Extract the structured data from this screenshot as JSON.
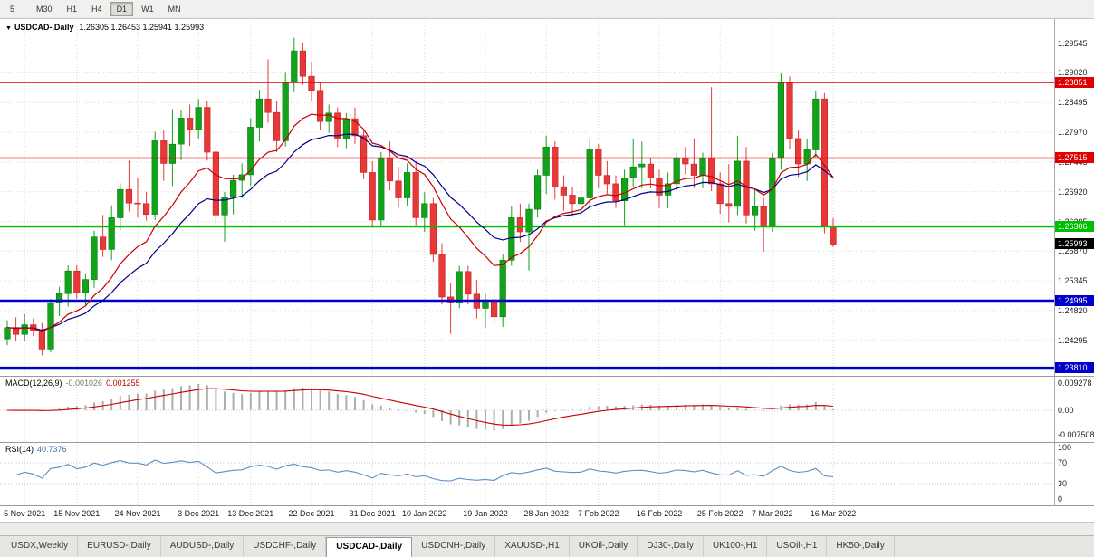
{
  "toolbar": {
    "timeframes": [
      {
        "label": "5",
        "active": false
      },
      {
        "label": "M30",
        "active": false
      },
      {
        "label": "H1",
        "active": false
      },
      {
        "label": "H4",
        "active": false
      },
      {
        "label": "D1",
        "active": true
      },
      {
        "label": "W1",
        "active": false
      },
      {
        "label": "MN",
        "active": false
      }
    ]
  },
  "chart": {
    "marker": "▼",
    "symbol_title": "USDCAD-,Daily",
    "ohlc_text": "1.26305 1.26453 1.25941 1.25993",
    "y_ticks": [
      "1.29545",
      "1.29020",
      "1.28495",
      "1.27970",
      "1.27445",
      "1.26920",
      "1.26395",
      "1.25870",
      "1.25345",
      "1.24820",
      "1.24295",
      "1.23770"
    ],
    "current_price_label": "1.25993"
  },
  "macd": {
    "name": "MACD(12,26,9)",
    "value_main": "-0.001026",
    "value_signal": "0.001255",
    "ticks": [
      "0.009278",
      "0.00",
      "-0.007508"
    ]
  },
  "rsi": {
    "name": "RSI(14)",
    "value": "40.7376",
    "ticks": [
      "100",
      "70",
      "30",
      "0"
    ]
  },
  "dates": [
    "5 Nov 2021",
    "15 Nov 2021",
    "24 Nov 2021",
    "3 Dec 2021",
    "13 Dec 2021",
    "22 Dec 2021",
    "31 Dec 2021",
    "10 Jan 2022",
    "19 Jan 2022",
    "28 Jan 2022",
    "7 Feb 2022",
    "16 Feb 2022",
    "25 Feb 2022",
    "7 Mar 2022",
    "16 Mar 2022"
  ],
  "tabs": [
    {
      "label": "USDX,Weekly",
      "active": false
    },
    {
      "label": "EURUSD-,Daily",
      "active": false
    },
    {
      "label": "AUDUSD-,Daily",
      "active": false
    },
    {
      "label": "USDCHF-,Daily",
      "active": false
    },
    {
      "label": "USDCAD-,Daily",
      "active": true
    },
    {
      "label": "USDCNH-,Daily",
      "active": false
    },
    {
      "label": "XAUUSD-,H1",
      "active": false
    },
    {
      "label": "UKOil-,Daily",
      "active": false
    },
    {
      "label": "DJ30-,Daily",
      "active": false
    },
    {
      "label": "UK100-,H1",
      "active": false
    },
    {
      "label": "USOil-,H1",
      "active": false
    },
    {
      "label": "HK50-,Daily",
      "active": false
    }
  ],
  "chart_data": {
    "type": "candlestick",
    "symbol": "USDCAD-",
    "timeframe": "Daily",
    "last_ohlc": {
      "open": 1.26305,
      "high": 1.26453,
      "low": 1.25941,
      "close": 1.25993
    },
    "ylim": [
      1.23667,
      1.29987
    ],
    "x_tick_labels": [
      "5 Nov 2021",
      "15 Nov 2021",
      "24 Nov 2021",
      "3 Dec 2021",
      "13 Dec 2021",
      "22 Dec 2021",
      "31 Dec 2021",
      "10 Jan 2022",
      "19 Jan 2022",
      "28 Jan 2022",
      "7 Feb 2022",
      "16 Feb 2022",
      "25 Feb 2022",
      "7 Mar 2022",
      "16 Mar 2022"
    ],
    "x_tick_indices": [
      2,
      8,
      15,
      22,
      28,
      35,
      42,
      48,
      55,
      62,
      68,
      75,
      82,
      88,
      95
    ],
    "levels": [
      {
        "label": "1.28851",
        "value": 1.28851,
        "color": "#E00000",
        "width": 1.6
      },
      {
        "label": "1.27515",
        "value": 1.27515,
        "color": "#E00000",
        "width": 1.6
      },
      {
        "label": "1.26306",
        "value": 1.26306,
        "color": "#00BE00",
        "width": 2.4
      },
      {
        "label": "1.24995",
        "value": 1.24995,
        "color": "#0000C8",
        "width": 2.4
      },
      {
        "label": "1.23810",
        "value": 1.2381,
        "color": "#0000C8",
        "width": 2.4
      }
    ],
    "current_price": 1.25993,
    "moving_averages": [
      {
        "type": "ema",
        "period": 12,
        "color": "#C80000"
      },
      {
        "type": "ema",
        "period": 20,
        "color": "#000080"
      }
    ],
    "indicators": [
      {
        "type": "macd",
        "params": [
          12,
          26,
          9
        ],
        "values_shown": [
          -0.001026,
          0.001255
        ],
        "axis_labels": [
          "0.009278",
          "0.00",
          "-0.007508"
        ]
      },
      {
        "type": "rsi",
        "params": [
          14
        ],
        "value_shown": 40.7376,
        "axis_labels": [
          "100",
          "70",
          "30",
          "0"
        ],
        "levels": [
          70,
          30
        ]
      }
    ],
    "candles": [
      [
        1.2432,
        1.2465,
        1.2421,
        1.2452
      ],
      [
        1.2452,
        1.247,
        1.2429,
        1.244
      ],
      [
        1.244,
        1.2476,
        1.2428,
        1.2457
      ],
      [
        1.2457,
        1.2468,
        1.2437,
        1.2446
      ],
      [
        1.2446,
        1.246,
        1.2403,
        1.2414
      ],
      [
        1.2414,
        1.2502,
        1.2408,
        1.2496
      ],
      [
        1.2496,
        1.2524,
        1.2472,
        1.2512
      ],
      [
        1.2512,
        1.2562,
        1.2489,
        1.2552
      ],
      [
        1.2552,
        1.2562,
        1.2503,
        1.2514
      ],
      [
        1.2514,
        1.2548,
        1.2492,
        1.2537
      ],
      [
        1.2537,
        1.2623,
        1.2522,
        1.2612
      ],
      [
        1.2612,
        1.2651,
        1.2577,
        1.259
      ],
      [
        1.259,
        1.2668,
        1.2571,
        1.2646
      ],
      [
        1.2646,
        1.2707,
        1.2624,
        1.2696
      ],
      [
        1.2696,
        1.2747,
        1.2657,
        1.2672
      ],
      [
        1.2672,
        1.2717,
        1.2646,
        1.2671
      ],
      [
        1.2671,
        1.2692,
        1.2641,
        1.2652
      ],
      [
        1.2652,
        1.2798,
        1.2642,
        1.2782
      ],
      [
        1.2782,
        1.2801,
        1.2711,
        1.2742
      ],
      [
        1.2742,
        1.2838,
        1.2702,
        1.2776
      ],
      [
        1.2776,
        1.2836,
        1.2748,
        1.2822
      ],
      [
        1.2822,
        1.2846,
        1.2773,
        1.2802
      ],
      [
        1.2802,
        1.2856,
        1.2786,
        1.2841
      ],
      [
        1.2841,
        1.2852,
        1.2747,
        1.2762
      ],
      [
        1.2762,
        1.2772,
        1.2638,
        1.2651
      ],
      [
        1.2651,
        1.2692,
        1.2604,
        1.2682
      ],
      [
        1.2682,
        1.2722,
        1.2652,
        1.2712
      ],
      [
        1.2712,
        1.2742,
        1.2681,
        1.2722
      ],
      [
        1.2722,
        1.2822,
        1.2702,
        1.2806
      ],
      [
        1.2806,
        1.2872,
        1.2781,
        1.2856
      ],
      [
        1.2856,
        1.2926,
        1.2814,
        1.2832
      ],
      [
        1.2832,
        1.2852,
        1.2762,
        1.2782
      ],
      [
        1.2782,
        1.2902,
        1.2772,
        1.2886
      ],
      [
        1.2886,
        1.2964,
        1.2868,
        1.2941
      ],
      [
        1.2941,
        1.2956,
        1.2881,
        1.2896
      ],
      [
        1.2896,
        1.2921,
        1.2852,
        1.2871
      ],
      [
        1.2871,
        1.2886,
        1.2801,
        1.2816
      ],
      [
        1.2816,
        1.2846,
        1.2796,
        1.2831
      ],
      [
        1.2831,
        1.2841,
        1.2771,
        1.2786
      ],
      [
        1.2786,
        1.2831,
        1.2769,
        1.2821
      ],
      [
        1.2821,
        1.2841,
        1.2776,
        1.2791
      ],
      [
        1.2791,
        1.2801,
        1.2714,
        1.2726
      ],
      [
        1.2726,
        1.2746,
        1.2631,
        1.2642
      ],
      [
        1.2642,
        1.2762,
        1.2631,
        1.2751
      ],
      [
        1.2751,
        1.2781,
        1.2694,
        1.2711
      ],
      [
        1.2711,
        1.2736,
        1.2664,
        1.2681
      ],
      [
        1.2681,
        1.2742,
        1.2666,
        1.2726
      ],
      [
        1.2726,
        1.2746,
        1.2633,
        1.2646
      ],
      [
        1.2646,
        1.2691,
        1.2621,
        1.2671
      ],
      [
        1.2671,
        1.2681,
        1.2568,
        1.2581
      ],
      [
        1.2581,
        1.2601,
        1.2493,
        1.2506
      ],
      [
        1.2506,
        1.2531,
        1.2441,
        1.2496
      ],
      [
        1.2496,
        1.2561,
        1.2486,
        1.2551
      ],
      [
        1.2551,
        1.2561,
        1.2493,
        1.2511
      ],
      [
        1.2511,
        1.2536,
        1.2468,
        1.2486
      ],
      [
        1.2486,
        1.2511,
        1.2451,
        1.2501
      ],
      [
        1.2501,
        1.2521,
        1.2458,
        1.2471
      ],
      [
        1.2471,
        1.2581,
        1.2453,
        1.2571
      ],
      [
        1.2571,
        1.2666,
        1.2561,
        1.2646
      ],
      [
        1.2646,
        1.2671,
        1.2603,
        1.2621
      ],
      [
        1.2621,
        1.2671,
        1.2553,
        1.2661
      ],
      [
        1.2661,
        1.2731,
        1.2646,
        1.2721
      ],
      [
        1.2721,
        1.2791,
        1.2688,
        1.2771
      ],
      [
        1.2771,
        1.2781,
        1.2678,
        1.2701
      ],
      [
        1.2701,
        1.2721,
        1.2658,
        1.2686
      ],
      [
        1.2686,
        1.2701,
        1.2648,
        1.2671
      ],
      [
        1.2671,
        1.2721,
        1.2653,
        1.2681
      ],
      [
        1.2681,
        1.2786,
        1.2663,
        1.2766
      ],
      [
        1.2766,
        1.2776,
        1.2698,
        1.2721
      ],
      [
        1.2721,
        1.2746,
        1.2688,
        1.2706
      ],
      [
        1.2706,
        1.2721,
        1.2663,
        1.2676
      ],
      [
        1.2676,
        1.2731,
        1.2633,
        1.2716
      ],
      [
        1.2716,
        1.2786,
        1.2701,
        1.2736
      ],
      [
        1.2736,
        1.2781,
        1.2698,
        1.2741
      ],
      [
        1.2741,
        1.2751,
        1.2698,
        1.2716
      ],
      [
        1.2716,
        1.2731,
        1.2663,
        1.2686
      ],
      [
        1.2686,
        1.2726,
        1.2663,
        1.2706
      ],
      [
        1.2706,
        1.2761,
        1.2694,
        1.2751
      ],
      [
        1.2751,
        1.2771,
        1.2723,
        1.2741
      ],
      [
        1.2741,
        1.2786,
        1.2698,
        1.2721
      ],
      [
        1.2721,
        1.2761,
        1.2698,
        1.2751
      ],
      [
        1.2751,
        1.2877,
        1.2693,
        1.2706
      ],
      [
        1.2706,
        1.2726,
        1.2653,
        1.2671
      ],
      [
        1.2671,
        1.2741,
        1.2638,
        1.2666
      ],
      [
        1.2666,
        1.2791,
        1.2651,
        1.2746
      ],
      [
        1.2746,
        1.2771,
        1.2636,
        1.2651
      ],
      [
        1.2651,
        1.2696,
        1.2623,
        1.2666
      ],
      [
        1.2666,
        1.2681,
        1.2586,
        1.2631
      ],
      [
        1.2631,
        1.2761,
        1.2621,
        1.2751
      ],
      [
        1.2751,
        1.2901,
        1.2731,
        1.2886
      ],
      [
        1.2886,
        1.2896,
        1.2768,
        1.2786
      ],
      [
        1.2786,
        1.2801,
        1.2718,
        1.2741
      ],
      [
        1.2741,
        1.2786,
        1.2711,
        1.2766
      ],
      [
        1.2766,
        1.2871,
        1.2751,
        1.2856
      ],
      [
        1.2856,
        1.2866,
        1.2618,
        1.2632
      ],
      [
        1.26305,
        1.26453,
        1.25941,
        1.25993
      ]
    ]
  }
}
